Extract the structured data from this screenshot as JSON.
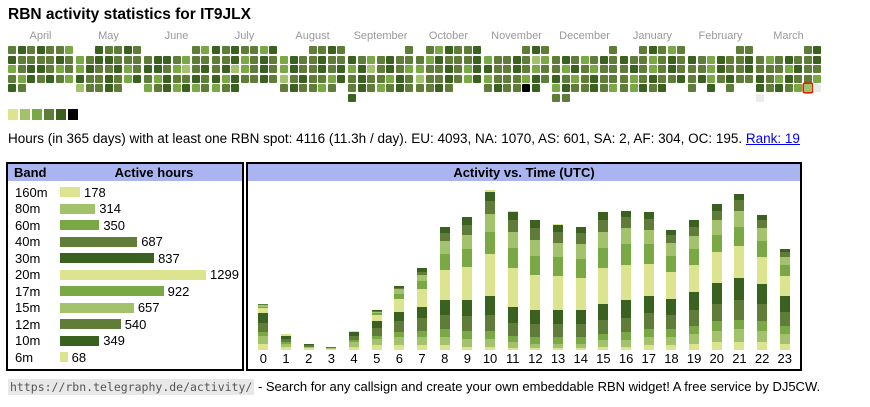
{
  "title": "RBN activity statistics for IT9JLX",
  "stats": {
    "prefix": "Hours (in 365 days) with at least one RBN spot: 4116 (11.3h / day). EU: 4093, NA: 1070, AS: 601, SA: 2, AF: 304, OC: 195. ",
    "link": "Rank: 19"
  },
  "ui": {
    "band_header": "Band",
    "hours_header": "Active hours",
    "time_title": "Activity vs. Time (UTC)"
  },
  "legend": {
    "colors": [
      "#dce48f",
      "#a2c36c",
      "#7aa845",
      "#5f7c38",
      "#3a611f",
      "#000000"
    ]
  },
  "footer": {
    "url": "https://rbn.telegraphy.de/activity/",
    "separator": " - ",
    "text": "Search for any callsign and create your own embeddable RBN widget! A free service by DJ5CW."
  },
  "chart_data": [
    {
      "id": "daily_activity_heatmap",
      "type": "heatmap",
      "title": "Daily RBN activity, one cell per day (Mon-Sun columns, weeks as rows), April 2024 - March 2025",
      "level_colors": {
        "0": "#ffffff",
        "1": "#dce48f",
        "2": "#a2c36c",
        "3": "#7aa845",
        "4": "#5f7c38",
        "5": "#3a611f",
        "6": "#000000",
        "7": "#ebebeb"
      },
      "today": {
        "month_index": 11,
        "day": 29
      },
      "months": [
        {
          "name": "April",
          "offset": 0,
          "days": 30,
          "levels": "454544354444543455434435454354"
        },
        {
          "name": "May",
          "offset": 2,
          "days": 31,
          "levels": "5445434554443544534544543524454"
        },
        {
          "name": "June",
          "offset": 5,
          "days": 30,
          "levels": "434554344554324543544543453534"
        },
        {
          "name": "July",
          "offset": 0,
          "days": 31,
          "levels": "5454435445345445234545354454345"
        },
        {
          "name": "August",
          "offset": 3,
          "days": 31,
          "levels": "4454354454435445452454435454434"
        },
        {
          "name": "September",
          "offset": 6,
          "days": 30,
          "levels": "454345443524543454435445434545"
        },
        {
          "name": "October",
          "offset": 1,
          "days": 31,
          "levels": "4354454354445344543524454354454"
        },
        {
          "name": "November",
          "offset": 4,
          "days": 30,
          "levels": "454344542354454343444354454465"
        },
        {
          "name": "December",
          "offset": 6,
          "days": 31,
          "levels": "4454345443543445434544354454344"
        },
        {
          "name": "January",
          "offset": 2,
          "days": 31,
          "levels": "4543454434544543454434544543545"
        },
        {
          "name": "February",
          "offset": 5,
          "days": 28,
          "levels": "4454354454435445453454440504"
        },
        {
          "name": "March",
          "offset": 5,
          "days": 31,
          "levels": "4543454454443544543544354543277"
        }
      ]
    },
    {
      "id": "band_hours",
      "type": "bar",
      "orientation": "horizontal",
      "title": "Active hours per band",
      "categories": [
        "160m",
        "80m",
        "60m",
        "40m",
        "30m",
        "20m",
        "17m",
        "15m",
        "12m",
        "10m",
        "6m"
      ],
      "values": [
        178,
        314,
        350,
        687,
        837,
        1299,
        922,
        657,
        540,
        349,
        68
      ],
      "colors": [
        "#dce48f",
        "#a2c36c",
        "#7aa845",
        "#5f7c38",
        "#3a611f",
        "#dce48f",
        "#7aa845",
        "#a2c36c",
        "#5f7c38",
        "#3a611f",
        "#dce48f"
      ],
      "xmax": 1299
    },
    {
      "id": "activity_vs_time",
      "type": "bar",
      "stacked": true,
      "title": "Activity vs. Time (UTC)",
      "x": [
        0,
        1,
        2,
        3,
        4,
        5,
        6,
        7,
        8,
        9,
        10,
        11,
        12,
        13,
        14,
        15,
        16,
        17,
        18,
        19,
        20,
        21,
        22,
        23
      ],
      "max_total": 100,
      "series": [
        {
          "name": "160m",
          "color": "#dce48f",
          "values": [
            4,
            2,
            1,
            0.5,
            2,
            3,
            3,
            3,
            3,
            2,
            2,
            1,
            1,
            1,
            1,
            2,
            2,
            3,
            3,
            4,
            5,
            5,
            5,
            4
          ]
        },
        {
          "name": "80m",
          "color": "#a2c36c",
          "values": [
            5,
            2,
            1,
            0.5,
            3,
            4,
            5,
            5,
            5,
            5,
            5,
            4,
            3,
            3,
            3,
            4,
            4,
            5,
            5,
            6,
            7,
            8,
            7,
            6
          ]
        },
        {
          "name": "60m",
          "color": "#7aa845",
          "values": [
            2,
            1,
            0,
            0,
            1,
            2,
            3,
            4,
            5,
            5,
            5,
            4,
            4,
            4,
            4,
            4,
            5,
            5,
            5,
            5,
            6,
            6,
            6,
            5
          ]
        },
        {
          "name": "40m",
          "color": "#5f7c38",
          "values": [
            6,
            2,
            1,
            0.6,
            3,
            5,
            7,
            8,
            9,
            9,
            10,
            8,
            8,
            8,
            8,
            9,
            9,
            10,
            9,
            10,
            11,
            12,
            11,
            9
          ]
        },
        {
          "name": "30m",
          "color": "#3a611f",
          "values": [
            6,
            2,
            0.5,
            0,
            2,
            4,
            6,
            7,
            9,
            10,
            12,
            10,
            9,
            9,
            9,
            10,
            11,
            11,
            10,
            11,
            13,
            14,
            12,
            10
          ]
        },
        {
          "name": "20m",
          "color": "#dce48f",
          "values": [
            3,
            1,
            0,
            0,
            1,
            4,
            8,
            11,
            19,
            21,
            26,
            24,
            22,
            21,
            20,
            22,
            22,
            20,
            17,
            17,
            19,
            20,
            17,
            12
          ]
        },
        {
          "name": "17m",
          "color": "#7aa845",
          "values": [
            1,
            0,
            0,
            0,
            0,
            1,
            3,
            5,
            10,
            11,
            14,
            13,
            12,
            12,
            12,
            13,
            13,
            12,
            10,
            10,
            11,
            12,
            10,
            7
          ]
        },
        {
          "name": "15m",
          "color": "#a2c36c",
          "values": [
            1,
            0,
            0,
            0,
            0,
            1,
            3,
            4,
            8,
            9,
            11,
            10,
            10,
            9,
            9,
            10,
            10,
            9,
            8,
            8,
            9,
            10,
            8,
            5
          ]
        },
        {
          "name": "12m",
          "color": "#5f7c38",
          "values": [
            0.5,
            0,
            0,
            0,
            0,
            0.5,
            1,
            2,
            5,
            6,
            8,
            7,
            7,
            7,
            7,
            7,
            7,
            7,
            5,
            6,
            6,
            7,
            5,
            3
          ]
        },
        {
          "name": "10m",
          "color": "#3a611f",
          "values": [
            0.5,
            0,
            0,
            0,
            0,
            0.5,
            1,
            2,
            4,
            5,
            6,
            5,
            5,
            4,
            4,
            5,
            4,
            4,
            3,
            4,
            4,
            3.5,
            3.5,
            2
          ]
        },
        {
          "name": "6m",
          "color": "#dce48f",
          "values": [
            0,
            0,
            0,
            0,
            0,
            0,
            0,
            0,
            0,
            0,
            1,
            1,
            0,
            0.5,
            0,
            0,
            0,
            0,
            0,
            0,
            0,
            0,
            0,
            0
          ]
        }
      ]
    }
  ]
}
